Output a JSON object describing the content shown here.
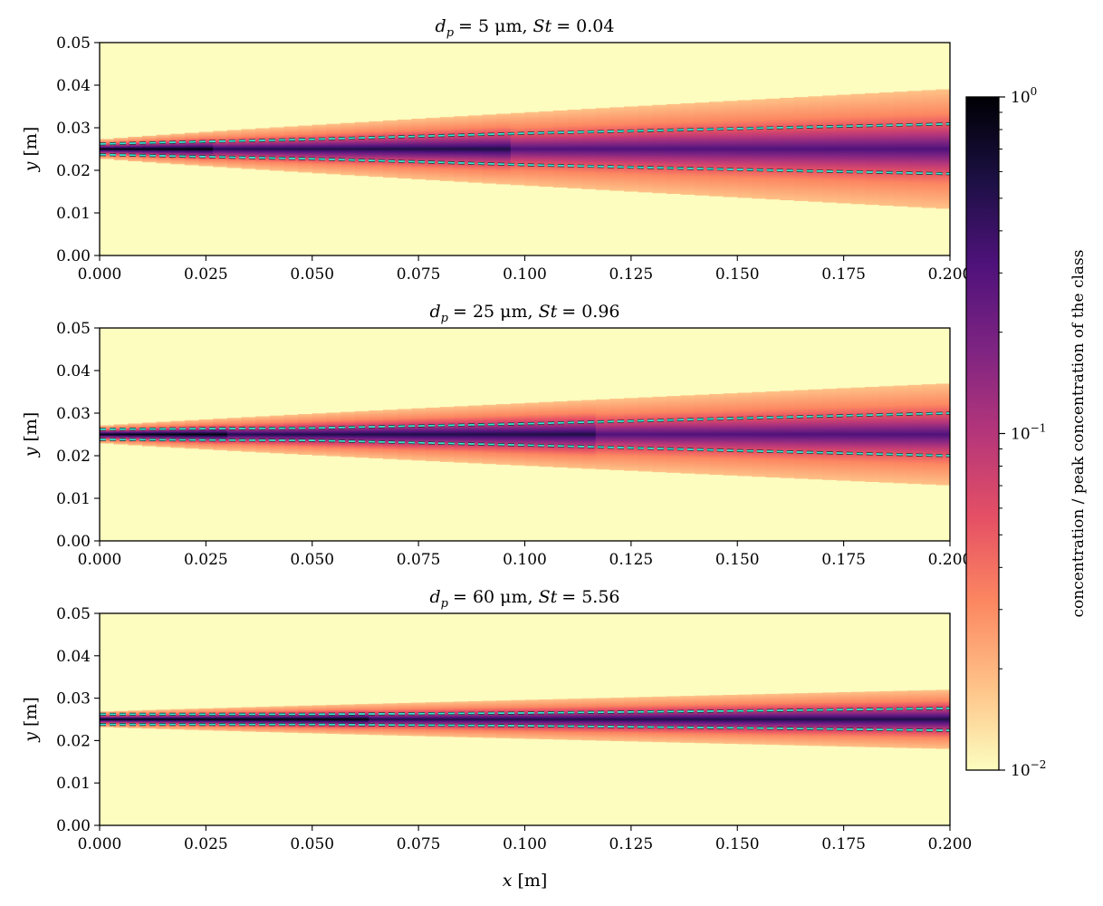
{
  "chart_data": {
    "type": "heatmap",
    "panels": [
      {
        "title": {
          "dp_symbol": "d",
          "dp_sub": "p",
          "dp_value": "= 5 μm,",
          "st_symbol": "St",
          "st_value": "= 0.04"
        },
        "ylabel": {
          "symbol": "y",
          "unit": "[m]"
        },
        "dashed_upper": [
          [
            0.0,
            0.0262
          ],
          [
            0.05,
            0.0273
          ],
          [
            0.1,
            0.0287
          ],
          [
            0.15,
            0.0298
          ],
          [
            0.2,
            0.0309
          ]
        ],
        "dashed_lower": [
          [
            0.0,
            0.0237
          ],
          [
            0.05,
            0.0227
          ],
          [
            0.1,
            0.0213
          ],
          [
            0.15,
            0.0202
          ],
          [
            0.2,
            0.0192
          ]
        ],
        "spread_halfwidth": [
          0.0022,
          0.0141
        ]
      },
      {
        "title": {
          "dp_symbol": "d",
          "dp_sub": "p",
          "dp_value": "= 25 μm,",
          "st_symbol": "St",
          "st_value": "= 0.96"
        },
        "ylabel": {
          "symbol": "y",
          "unit": "[m]"
        },
        "dashed_upper": [
          [
            0.0,
            0.0262
          ],
          [
            0.05,
            0.0265
          ],
          [
            0.1,
            0.0275
          ],
          [
            0.15,
            0.0288
          ],
          [
            0.2,
            0.03
          ]
        ],
        "dashed_lower": [
          [
            0.0,
            0.0238
          ],
          [
            0.05,
            0.0236
          ],
          [
            0.1,
            0.0225
          ],
          [
            0.15,
            0.0212
          ],
          [
            0.2,
            0.02
          ]
        ],
        "spread_halfwidth": [
          0.002,
          0.012
        ]
      },
      {
        "title": {
          "dp_symbol": "d",
          "dp_sub": "p",
          "dp_value": "= 60 μm,",
          "st_symbol": "St",
          "st_value": "= 5.56"
        },
        "ylabel": {
          "symbol": "y",
          "unit": "[m]"
        },
        "dashed_upper": [
          [
            0.0,
            0.0262
          ],
          [
            0.05,
            0.0262
          ],
          [
            0.1,
            0.0265
          ],
          [
            0.15,
            0.027
          ],
          [
            0.2,
            0.0276
          ]
        ],
        "dashed_lower": [
          [
            0.0,
            0.0238
          ],
          [
            0.05,
            0.0238
          ],
          [
            0.1,
            0.0235
          ],
          [
            0.15,
            0.023
          ],
          [
            0.2,
            0.0224
          ]
        ],
        "spread_halfwidth": [
          0.0018,
          0.007
        ]
      }
    ],
    "jet_center_y": 0.025,
    "xlim": [
      0.0,
      0.2
    ],
    "ylim": [
      0.0,
      0.05
    ],
    "xticks": [
      "0.000",
      "0.025",
      "0.050",
      "0.075",
      "0.100",
      "0.125",
      "0.150",
      "0.175",
      "0.200"
    ],
    "yticks": [
      "0.00",
      "0.01",
      "0.02",
      "0.03",
      "0.04",
      "0.05"
    ],
    "xlabel": {
      "symbol": "x",
      "unit": "[m]"
    },
    "colorbar": {
      "label": "concentration / peak concentration of the class",
      "scale": "log",
      "range": [
        0.01,
        1
      ],
      "ticks": [
        {
          "value": 1,
          "base": "10",
          "exp": "0"
        },
        {
          "value": 0.1,
          "base": "10",
          "exp": "−1"
        },
        {
          "value": 0.01,
          "base": "10",
          "exp": "−2"
        }
      ],
      "colormap": "magma_r",
      "colormap_stops": [
        "#fcfdbf",
        "#fec287",
        "#fc8761",
        "#e55064",
        "#b5367a",
        "#7e2482",
        "#4f127b",
        "#1c1044",
        "#000004"
      ]
    },
    "dashed_line_color": "#40e0d0"
  }
}
